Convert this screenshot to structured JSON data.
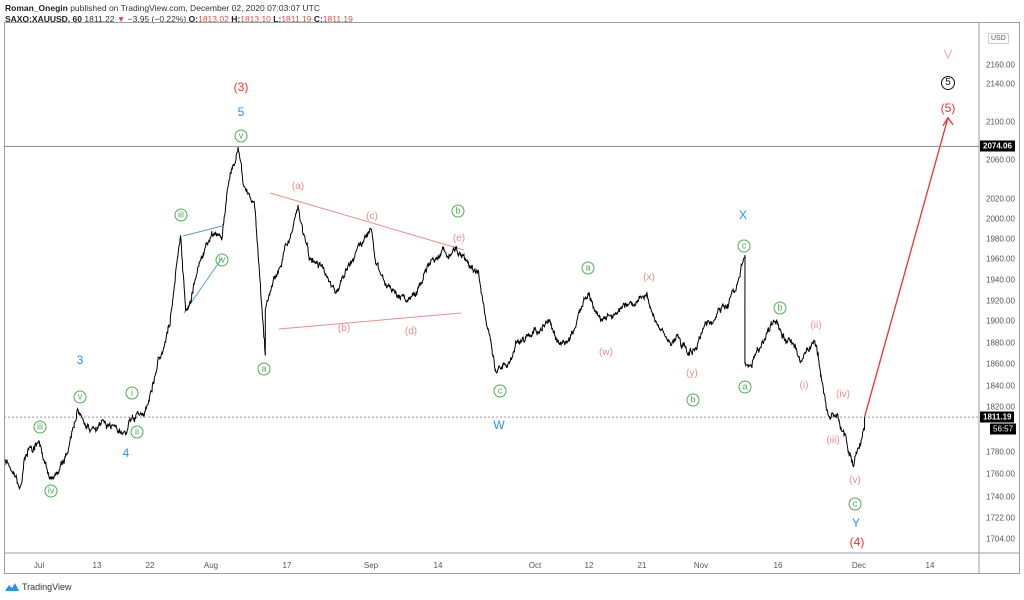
{
  "header": {
    "author": "Roman_Onegin",
    "published": "published on TradingView.com, December 02, 2020 07:03:07 UTC",
    "symbol": "SAXO:XAUUSD, 60",
    "last": "1811.22",
    "change": "−3.95 (−0.22%)",
    "o_label": "O:",
    "o": "1813.02",
    "h_label": "H:",
    "h": "1813.10",
    "l_label": "L:",
    "l": "1811.19",
    "c_label": "C:",
    "c": "1811.19"
  },
  "currency": "USD",
  "price_tag": "1811.19",
  "countdown": "56:57",
  "level_tag": "2074.06",
  "brand": "TradingView",
  "colors": {
    "up": "#26a69a",
    "down": "#e84a4a",
    "wave_green": "#4caf50",
    "wave_pink": "#f08c8c",
    "wave_blue": "#2196f3",
    "wave_red": "#f23030"
  },
  "chart_data": {
    "type": "line",
    "symbol": "XAUUSD",
    "interval": "60",
    "y_scale": "log",
    "ylim": [
      1695,
      2175
    ],
    "y_ticks": [
      "2160.00",
      "2140.00",
      "2100.00",
      "2060.00",
      "2020.00",
      "2000.00",
      "1980.00",
      "1960.00",
      "1940.00",
      "1920.00",
      "1900.00",
      "1880.00",
      "1860.00",
      "1840.00",
      "1820.00",
      "1780.00",
      "1760.00",
      "1740.00",
      "1722.00",
      "1704.00"
    ],
    "x_ticks": [
      {
        "label": "Jul",
        "date": "2020-07-01"
      },
      {
        "label": "13",
        "date": "2020-07-13"
      },
      {
        "label": "22",
        "date": "2020-07-22"
      },
      {
        "label": "Aug",
        "date": "2020-08-03"
      },
      {
        "label": "17",
        "date": "2020-08-17"
      },
      {
        "label": "Sep",
        "date": "2020-09-01"
      },
      {
        "label": "14",
        "date": "2020-09-14"
      },
      {
        "label": "Oct",
        "date": "2020-10-01"
      },
      {
        "label": "12",
        "date": "2020-10-12"
      },
      {
        "label": "21",
        "date": "2020-10-21"
      },
      {
        "label": "Nov",
        "date": "2020-11-02"
      },
      {
        "label": "16",
        "date": "2020-11-16"
      },
      {
        "label": "Dec",
        "date": "2020-12-01"
      },
      {
        "label": "14",
        "date": "2020-12-14"
      }
    ],
    "horizontal_level": 2074.06,
    "last_price": 1811.19,
    "price_path": [
      [
        "2020-06-24",
        1771
      ],
      [
        "2020-06-27",
        1749
      ],
      [
        "2020-06-28",
        1774
      ],
      [
        "2020-07-01",
        1789
      ],
      [
        "2020-07-03",
        1759
      ],
      [
        "2020-07-07",
        1780
      ],
      [
        "2020-07-09",
        1818
      ],
      [
        "2020-07-13",
        1801
      ],
      [
        "2020-07-18",
        1797
      ],
      [
        "2020-07-22",
        1831
      ],
      [
        "2020-07-26",
        1901
      ],
      [
        "2020-07-28",
        1983
      ],
      [
        "2020-07-29",
        1909
      ],
      [
        "2020-08-02",
        1974
      ],
      [
        "2020-08-05",
        1979
      ],
      [
        "2020-08-06",
        2029
      ],
      [
        "2020-08-08",
        2072
      ],
      [
        "2020-08-09",
        2034
      ],
      [
        "2020-08-11",
        2019
      ],
      [
        "2020-08-13",
        1868
      ],
      [
        "2020-08-13",
        1911
      ],
      [
        "2020-08-19",
        2014
      ],
      [
        "2020-08-21",
        1959
      ],
      [
        "2020-08-26",
        1930
      ],
      [
        "2020-09-01",
        1991
      ],
      [
        "2020-09-02",
        1954
      ],
      [
        "2020-09-08",
        1920
      ],
      [
        "2020-09-12",
        1954
      ],
      [
        "2020-09-17",
        1971
      ],
      [
        "2020-09-21",
        1949
      ],
      [
        "2020-09-24",
        1854
      ],
      [
        "2020-09-28",
        1882
      ],
      [
        "2020-10-04",
        1901
      ],
      [
        "2020-10-08",
        1882
      ],
      [
        "2020-10-12",
        1928
      ],
      [
        "2020-10-14",
        1901
      ],
      [
        "2020-10-22",
        1928
      ],
      [
        "2020-10-25",
        1892
      ],
      [
        "2020-10-30",
        1873
      ],
      [
        "2020-11-03",
        1897
      ],
      [
        "2020-11-07",
        1916
      ],
      [
        "2020-11-10",
        1964
      ],
      [
        "2020-11-10",
        1859
      ],
      [
        "2020-11-13",
        1878
      ],
      [
        "2020-11-16",
        1897
      ],
      [
        "2020-11-20",
        1864
      ],
      [
        "2020-11-23",
        1878
      ],
      [
        "2020-11-25",
        1818
      ],
      [
        "2020-11-27",
        1813
      ],
      [
        "2020-11-30",
        1768
      ],
      [
        "2020-12-02",
        1800
      ],
      [
        "2020-12-02",
        1811
      ]
    ],
    "projection": [
      [
        "2020-12-02",
        1811
      ],
      [
        "2020-12-17",
        2104
      ]
    ],
    "wave_labels": {
      "red_3": "(3)",
      "blue_5": "5",
      "g_v_top": "v",
      "g_iii_top": "iii",
      "g_iv_top": "iv",
      "blue_3": "3",
      "g_v_low": "v",
      "g_i": "i",
      "g_iii_low": "iii",
      "g_ii": "ii",
      "blue_4": "4",
      "g_iv_low": "iv",
      "g_a1": "a",
      "p_a": "(a)",
      "p_c": "(c)",
      "p_b": "(b)",
      "p_d": "(d)",
      "p_e": "(e)",
      "g_b1": "b",
      "g_c1": "c",
      "blue_W": "W",
      "g_a2": "a",
      "p_x": "(x)",
      "p_w": "(w)",
      "p_y": "(y)",
      "g_b2": "b",
      "blue_X": "X",
      "g_c2": "c",
      "g_a3": "a",
      "g_b3": "b",
      "p_ii": "(ii)",
      "p_i": "(i)",
      "p_iv": "(iv)",
      "p_iii": "(iii)",
      "p_v": "(v)",
      "g_c3": "c",
      "blue_Y": "Y",
      "red_4": "(4)",
      "pink_V": "V",
      "black_5": "5",
      "red_5": "(5)"
    }
  }
}
